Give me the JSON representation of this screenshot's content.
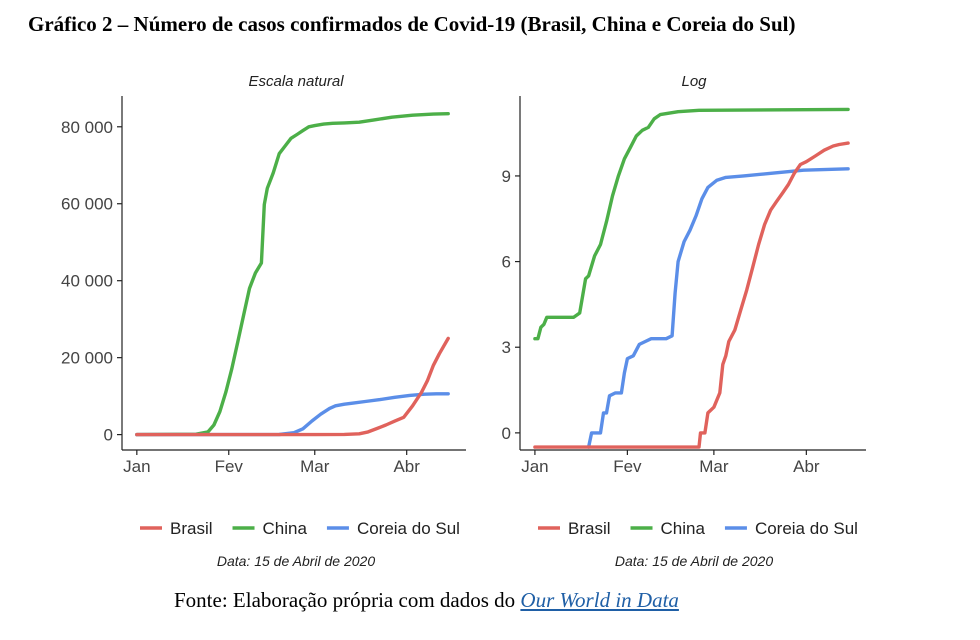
{
  "title": "Gráfico 2 – Número de casos confirmados de Covid-19 (Brasil, China e Coreia do Sul)",
  "source": {
    "prefix": "Fonte: Elaboração própria com dados do ",
    "link_text": "Our World in Data"
  },
  "colors": {
    "Brasil": "#e0625c",
    "China": "#4caf48",
    "Coreia do Sul": "#5b8ee8"
  },
  "chart_data": [
    {
      "type": "line",
      "subtitle": "Escala natural",
      "caption": "Data: 15 de Abril de 2020",
      "x_ticks": [
        "Jan",
        "Fev",
        "Mar",
        "Abr"
      ],
      "x_tick_days": [
        0,
        31,
        60,
        91
      ],
      "xlim": [
        -5,
        111
      ],
      "y_ticks": [
        0,
        20000,
        40000,
        60000,
        80000
      ],
      "y_tick_labels": [
        "0",
        "20 000",
        "40 000",
        "60 000",
        "80 000"
      ],
      "ylim": [
        -4000,
        88000
      ],
      "legend": {
        "placement": "bottom",
        "entries": [
          "Brasil",
          "China",
          "Coreia do Sul"
        ]
      },
      "grid": false,
      "series": [
        {
          "name": "China",
          "points": [
            [
              0,
              0
            ],
            [
              20,
              100
            ],
            [
              24,
              700
            ],
            [
              26,
              2500
            ],
            [
              28,
              6000
            ],
            [
              30,
              11000
            ],
            [
              32,
              17000
            ],
            [
              34,
              24000
            ],
            [
              36,
              31000
            ],
            [
              38,
              38000
            ],
            [
              40,
              42000
            ],
            [
              42,
              44600
            ],
            [
              43,
              59800
            ],
            [
              44,
              64000
            ],
            [
              46,
              68000
            ],
            [
              48,
              73000
            ],
            [
              50,
              75000
            ],
            [
              52,
              77000
            ],
            [
              54,
              78000
            ],
            [
              56,
              79000
            ],
            [
              58,
              80000
            ],
            [
              60,
              80300
            ],
            [
              63,
              80700
            ],
            [
              66,
              80900
            ],
            [
              70,
              81000
            ],
            [
              75,
              81200
            ],
            [
              80,
              81800
            ],
            [
              86,
              82500
            ],
            [
              93,
              83000
            ],
            [
              100,
              83300
            ],
            [
              105,
              83400
            ]
          ]
        },
        {
          "name": "Coreia do Sul",
          "points": [
            [
              0,
              0
            ],
            [
              48,
              30
            ],
            [
              53,
              500
            ],
            [
              56,
              1500
            ],
            [
              59,
              3500
            ],
            [
              62,
              5300
            ],
            [
              65,
              6800
            ],
            [
              67,
              7500
            ],
            [
              70,
              7900
            ],
            [
              73,
              8200
            ],
            [
              77,
              8600
            ],
            [
              82,
              9100
            ],
            [
              87,
              9700
            ],
            [
              92,
              10200
            ],
            [
              97,
              10500
            ],
            [
              101,
              10600
            ],
            [
              105,
              10600
            ]
          ]
        },
        {
          "name": "Brasil",
          "points": [
            [
              0,
              0
            ],
            [
              60,
              0
            ],
            [
              70,
              50
            ],
            [
              75,
              200
            ],
            [
              78,
              700
            ],
            [
              81,
              1600
            ],
            [
              84,
              2500
            ],
            [
              87,
              3500
            ],
            [
              90,
              4500
            ],
            [
              93,
              7500
            ],
            [
              96,
              11000
            ],
            [
              98,
              14000
            ],
            [
              100,
              18000
            ],
            [
              102,
              21000
            ],
            [
              105,
              25000
            ]
          ]
        }
      ]
    },
    {
      "type": "line",
      "subtitle": "Log",
      "caption": "Data: 15 de Abril de 2020",
      "x_ticks": [
        "Jan",
        "Fev",
        "Mar",
        "Abr"
      ],
      "x_tick_days": [
        0,
        31,
        60,
        91
      ],
      "xlim": [
        -5,
        111
      ],
      "y_ticks": [
        0,
        3,
        6,
        9
      ],
      "y_tick_labels": [
        "0",
        "3",
        "6",
        "9"
      ],
      "ylim": [
        -0.6,
        11.8
      ],
      "legend": {
        "placement": "bottom",
        "entries": [
          "Brasil",
          "China",
          "Coreia do Sul"
        ]
      },
      "grid": false,
      "series": [
        {
          "name": "China",
          "points": [
            [
              0,
              3.3
            ],
            [
              1,
              3.3
            ],
            [
              2,
              3.7
            ],
            [
              3,
              3.8
            ],
            [
              4,
              4.05
            ],
            [
              13,
              4.05
            ],
            [
              15,
              4.2
            ],
            [
              17,
              5.4
            ],
            [
              18,
              5.5
            ],
            [
              20,
              6.2
            ],
            [
              22,
              6.6
            ],
            [
              24,
              7.4
            ],
            [
              26,
              8.3
            ],
            [
              28,
              9.0
            ],
            [
              30,
              9.6
            ],
            [
              32,
              10.0
            ],
            [
              34,
              10.4
            ],
            [
              36,
              10.6
            ],
            [
              38,
              10.7
            ],
            [
              40,
              11.0
            ],
            [
              42,
              11.15
            ],
            [
              48,
              11.25
            ],
            [
              55,
              11.3
            ],
            [
              105,
              11.33
            ]
          ]
        },
        {
          "name": "Coreia do Sul",
          "points": [
            [
              18,
              -0.5
            ],
            [
              19,
              0.0
            ],
            [
              22,
              0.0
            ],
            [
              23,
              0.7
            ],
            [
              24,
              0.7
            ],
            [
              25,
              1.3
            ],
            [
              27,
              1.4
            ],
            [
              29,
              1.4
            ],
            [
              30,
              2.1
            ],
            [
              31,
              2.6
            ],
            [
              33,
              2.7
            ],
            [
              35,
              3.1
            ],
            [
              37,
              3.2
            ],
            [
              39,
              3.3
            ],
            [
              44,
              3.3
            ],
            [
              46,
              3.4
            ],
            [
              47,
              4.9
            ],
            [
              48,
              6.0
            ],
            [
              50,
              6.7
            ],
            [
              52,
              7.1
            ],
            [
              54,
              7.6
            ],
            [
              56,
              8.2
            ],
            [
              58,
              8.6
            ],
            [
              61,
              8.85
            ],
            [
              64,
              8.95
            ],
            [
              70,
              9.0
            ],
            [
              80,
              9.1
            ],
            [
              90,
              9.2
            ],
            [
              105,
              9.25
            ]
          ]
        },
        {
          "name": "Brasil",
          "points": [
            [
              0,
              -0.5
            ],
            [
              55,
              -0.5
            ],
            [
              55.5,
              0.0
            ],
            [
              57,
              0.0
            ],
            [
              58,
              0.7
            ],
            [
              60,
              0.9
            ],
            [
              62,
              1.4
            ],
            [
              63,
              2.4
            ],
            [
              64,
              2.7
            ],
            [
              65,
              3.2
            ],
            [
              67,
              3.6
            ],
            [
              69,
              4.3
            ],
            [
              71,
              5.0
            ],
            [
              73,
              5.8
            ],
            [
              75,
              6.6
            ],
            [
              77,
              7.3
            ],
            [
              79,
              7.8
            ],
            [
              81,
              8.1
            ],
            [
              83,
              8.4
            ],
            [
              85,
              8.7
            ],
            [
              87,
              9.1
            ],
            [
              89,
              9.4
            ],
            [
              91,
              9.5
            ],
            [
              94,
              9.7
            ],
            [
              97,
              9.9
            ],
            [
              100,
              10.05
            ],
            [
              102,
              10.1
            ],
            [
              105,
              10.15
            ]
          ]
        }
      ]
    }
  ]
}
